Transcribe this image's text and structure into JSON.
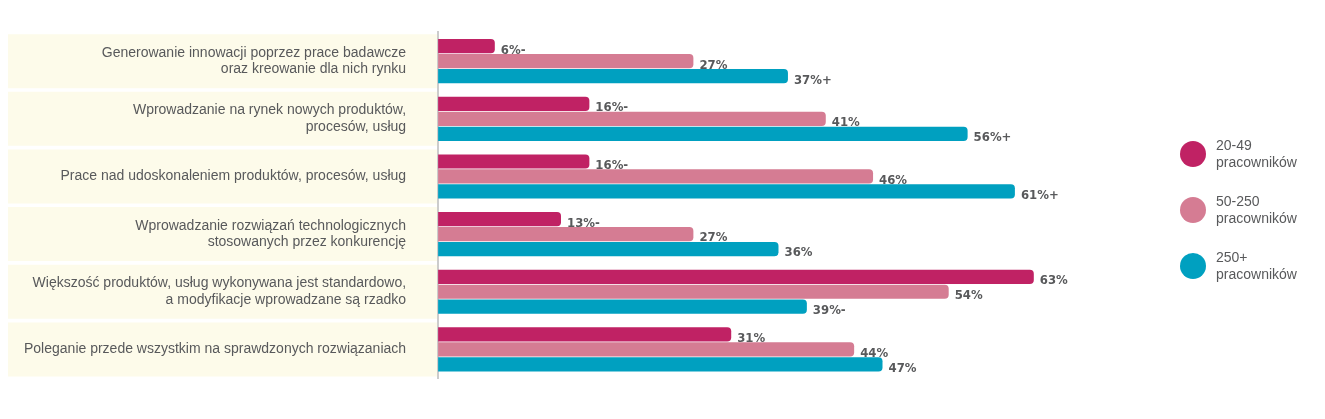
{
  "chart_data": {
    "type": "bar",
    "orientation": "horizontal",
    "legend": "right",
    "categories": [
      "Generowanie innowacji poprzez prace badawcze\noraz kreowanie dla nich rynku",
      "Wprowadzanie na rynek nowych produktów,\nprocesów, usług",
      "Prace nad udoskonaleniem produktów, procesów, usług",
      "Wprowadzanie rozwiązań technologicznych\nstosowanych przez konkurencję",
      "Większość produktów, usług wykonywana jest standardowo,\na modyfikacje wprowadzane są rzadko",
      "Poleganie przede wszystkim na sprawdzonych rozwiązaniach"
    ],
    "series": [
      {
        "name": "20-49 pracowników",
        "color": "#c02264",
        "values": [
          6,
          16,
          16,
          13,
          63,
          31
        ],
        "value_labels": [
          "6%-",
          "16%-",
          "16%-",
          "13%-",
          "63%",
          "31%"
        ]
      },
      {
        "name": "50-250 pracowników",
        "color": "#d57c93",
        "values": [
          27,
          41,
          46,
          27,
          54,
          44
        ],
        "value_labels": [
          "27%",
          "41%",
          "46%",
          "27%",
          "54%",
          "44%"
        ]
      },
      {
        "name": "250+ pracowników",
        "color": "#00a0c0",
        "values": [
          37,
          56,
          61,
          36,
          39,
          47
        ],
        "value_labels": [
          "37%+",
          "56%+",
          "61%+",
          "36%",
          "39%-",
          "47%"
        ]
      }
    ]
  }
}
